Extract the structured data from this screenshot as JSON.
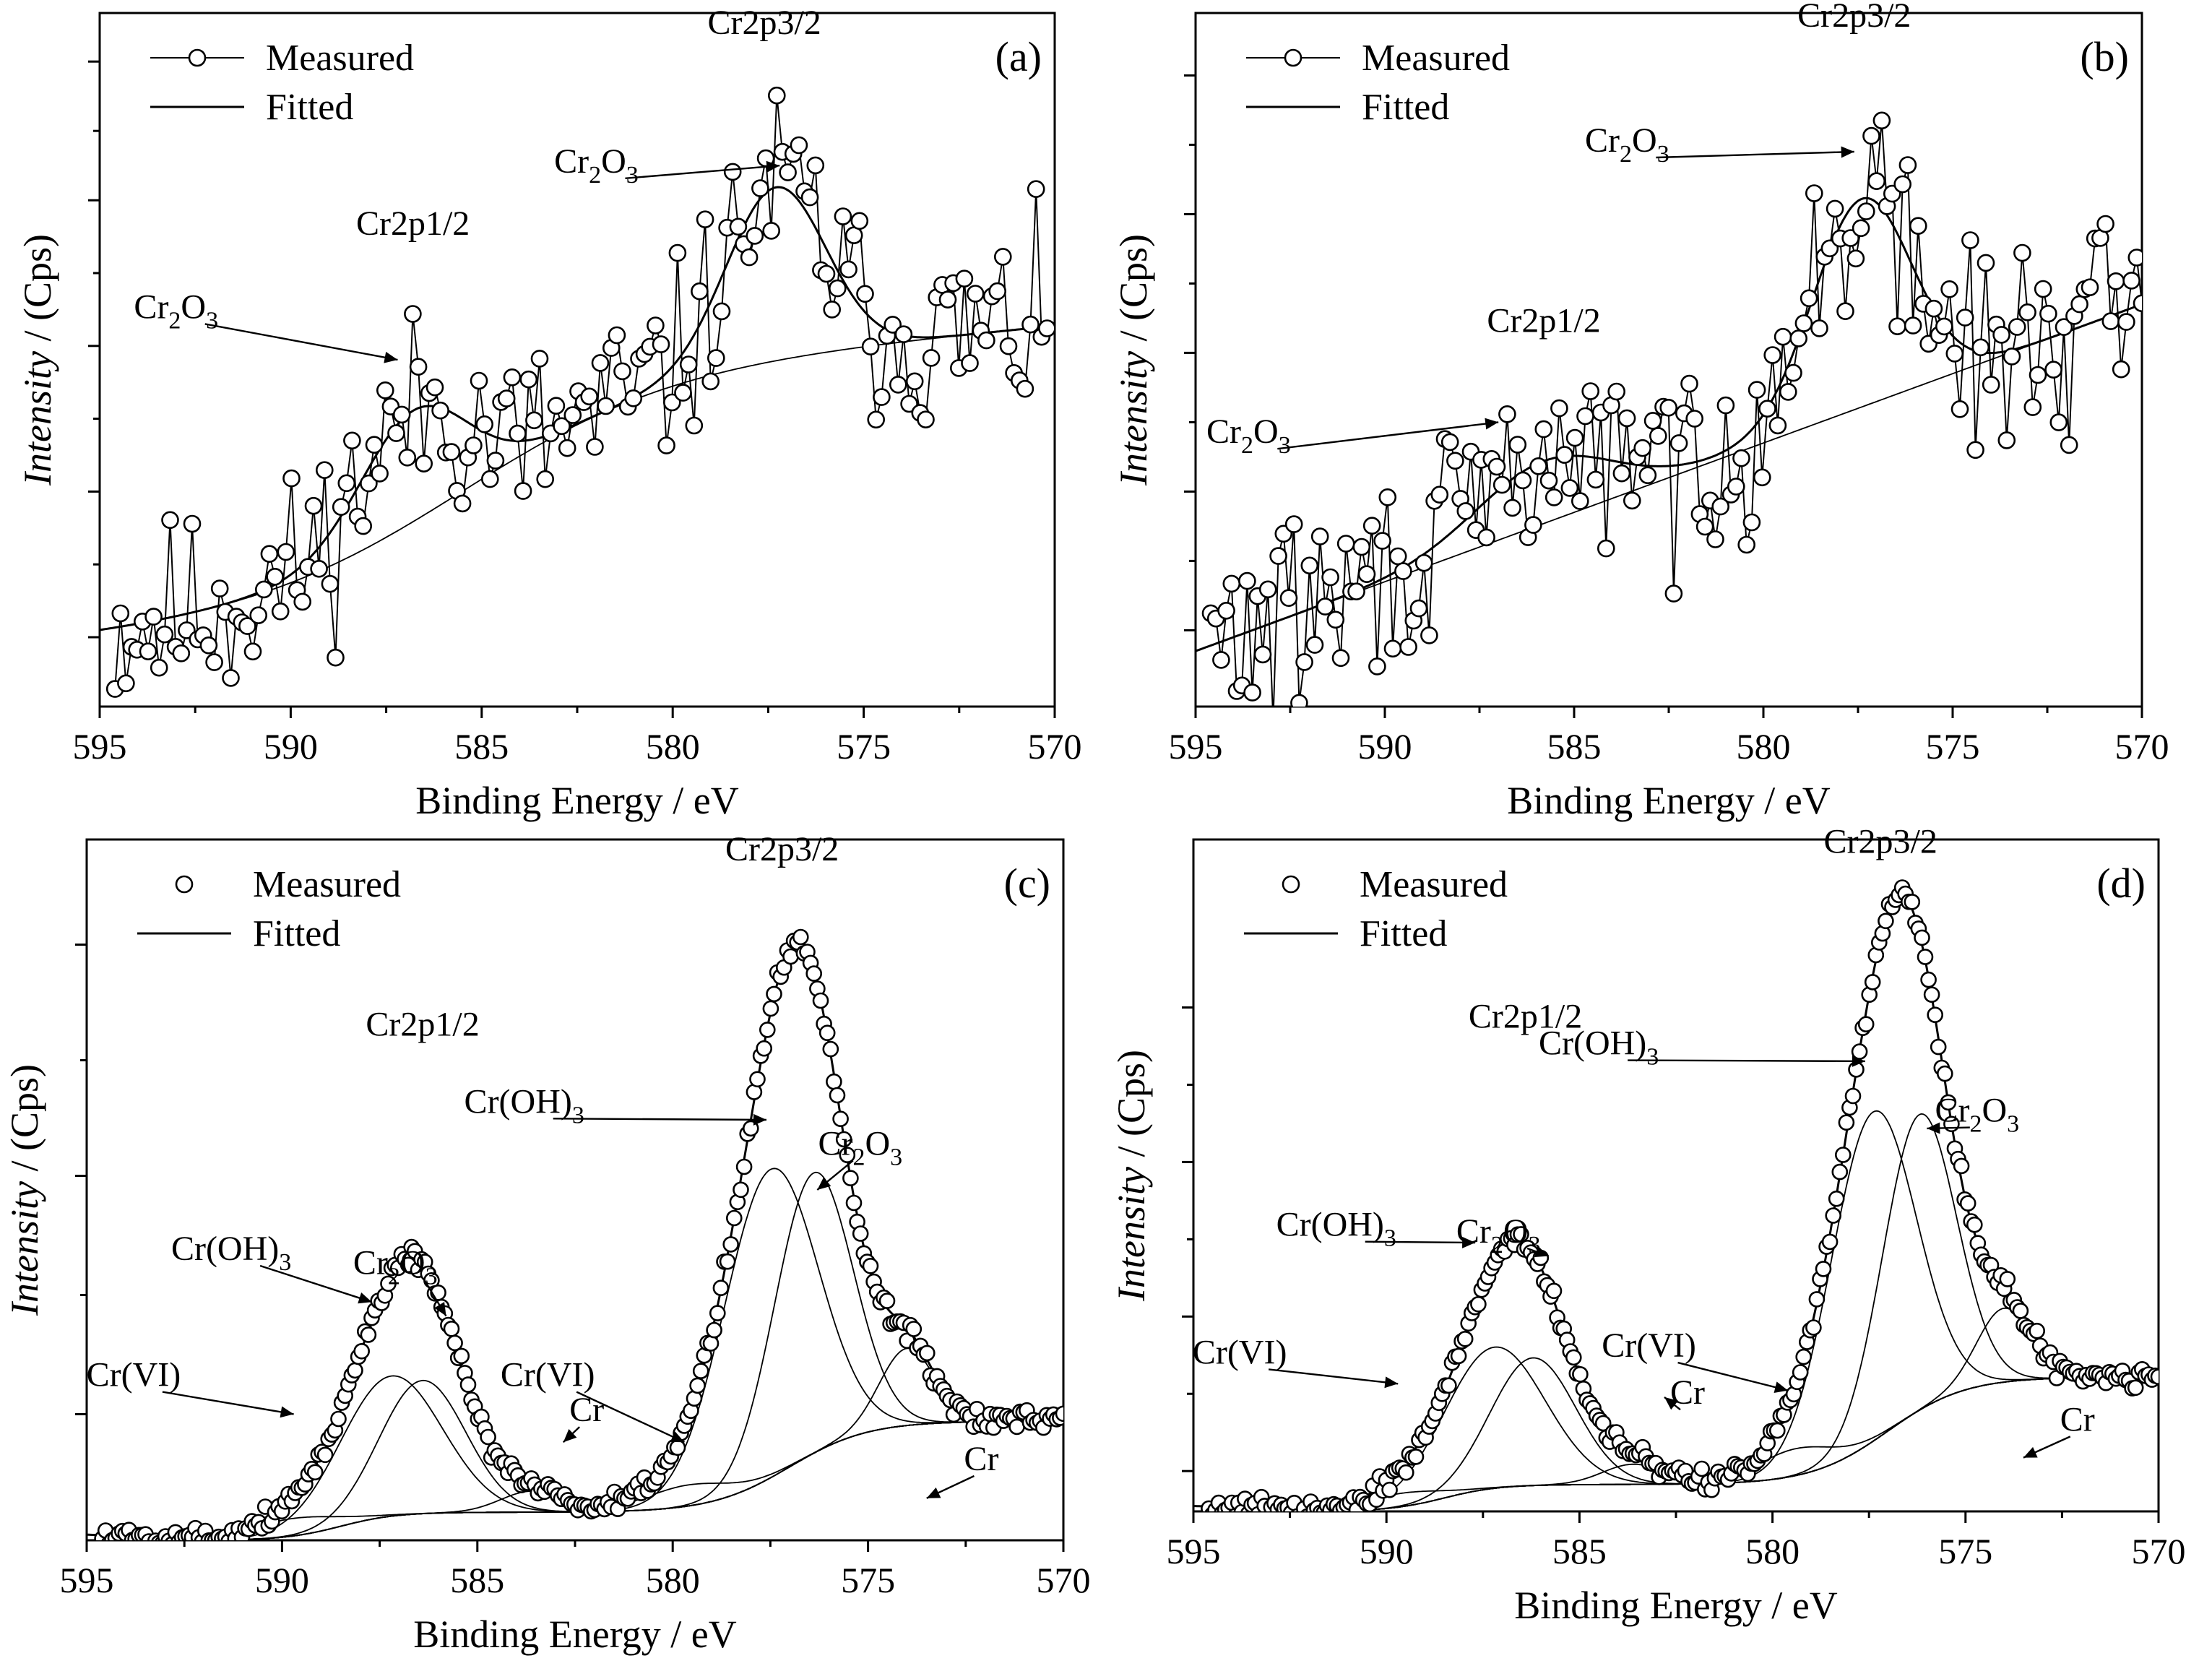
{
  "figure": {
    "description_labels": [
      "(a)",
      "(b)",
      "(c)",
      "(d)"
    ]
  },
  "chart_data": [
    {
      "panel": "(a)",
      "type": "scatter",
      "xlabel": "Binding Energy / eV",
      "ylabel_italic": "Intensity",
      "ylabel_rest": " / (Cps)",
      "xlim": [
        595,
        570
      ],
      "ylim": [
        0,
        100
      ],
      "xticks": [
        595,
        590,
        585,
        580,
        575,
        570
      ],
      "yticks_count": 5,
      "legend": {
        "measured": "Measured",
        "fitted": "Fitted",
        "measured_style": "line-with-markers"
      },
      "annotations": [
        {
          "text": "Cr2p3/2",
          "x": 577.5,
          "y": 95
        },
        {
          "text": "Cr2p1/2",
          "x": 586.5,
          "y": 67
        },
        {
          "text": "Cr",
          "sub": "2",
          "text2": "O",
          "sub2": "3",
          "x": 577.2,
          "y": 78,
          "arrow": true
        },
        {
          "text": "Cr",
          "sub": "2",
          "text2": "O",
          "sub2": "3",
          "x": 587.2,
          "y": 50,
          "arrow": true
        }
      ],
      "series": [
        {
          "name": "Fitted",
          "kind": "fit",
          "peaks": [
            [
              586.8,
              16,
              1.4
            ],
            [
              577.3,
              25,
              1.3
            ]
          ],
          "baseline": "a_bg"
        },
        {
          "name": "Background",
          "kind": "bg",
          "shape": "a_bg"
        },
        {
          "name": "Measured",
          "kind": "measured",
          "x_start": 594.6,
          "x_end": 570.2,
          "count": 170,
          "noise": 7,
          "seed": 11
        }
      ]
    },
    {
      "panel": "(b)",
      "type": "scatter",
      "xlabel": "Binding Energy / eV",
      "ylabel_italic": "Intensity",
      "ylabel_rest": " / (Cps)",
      "xlim": [
        595,
        570
      ],
      "ylim": [
        0,
        100
      ],
      "xticks": [
        595,
        590,
        585,
        580,
        575,
        570
      ],
      "yticks_count": 5,
      "legend": {
        "measured": "Measured",
        "fitted": "Fitted",
        "measured_style": "line-with-markers"
      },
      "annotations": [
        {
          "text": "Cr2p3/2",
          "x": 577.2,
          "y": 97
        },
        {
          "text": "Cr2p1/2",
          "x": 587.5,
          "y": 55
        },
        {
          "text": "Cr",
          "sub": "2",
          "text2": "O",
          "sub2": "3",
          "x": 577.6,
          "y": 80,
          "arrow": true
        },
        {
          "text": "Cr",
          "sub": "2",
          "text2": "O",
          "sub2": "3",
          "x": 587.0,
          "y": 41,
          "arrow": true
        }
      ],
      "series": [
        {
          "name": "Fitted",
          "kind": "fit",
          "peaks": [
            [
              585.8,
              9,
              1.8
            ],
            [
              577.4,
              30,
              1.3
            ]
          ],
          "baseline": "b_bg"
        },
        {
          "name": "Background",
          "kind": "bg",
          "shape": "b_bg"
        },
        {
          "name": "Measured",
          "kind": "measured",
          "x_start": 594.6,
          "x_end": 570.0,
          "count": 180,
          "noise": 7,
          "seed": 29
        }
      ]
    },
    {
      "panel": "(c)",
      "type": "scatter",
      "xlabel": "Binding Energy / eV",
      "ylabel_italic": "Intensity",
      "ylabel_rest": " / (Cps)",
      "xlim": [
        595,
        570
      ],
      "ylim": [
        0,
        100
      ],
      "xticks": [
        595,
        590,
        585,
        580,
        575,
        570
      ],
      "yticks_count": 4,
      "legend": {
        "measured": "Measured",
        "fitted": "Fitted",
        "measured_style": "markers-only"
      },
      "annotations": [
        {
          "text": "Cr2p3/2",
          "x": 576.8,
          "y": 97
        },
        {
          "text": "Cr2p1/2",
          "x": 586.8,
          "y": 69
        },
        {
          "text": "Cr(OH)",
          "sub": "3",
          "x": 577.6,
          "y": 60,
          "arrow": true
        },
        {
          "text": "Cr",
          "sub": "2",
          "text2": "O",
          "sub2": "3",
          "x": 576.3,
          "y": 50,
          "arrow": true
        },
        {
          "text": "Cr(OH)",
          "sub": "3",
          "x": 587.7,
          "y": 34,
          "arrow": true
        },
        {
          "text": "Cr",
          "sub": "2",
          "text2": "O",
          "sub2": "3",
          "x": 585.8,
          "y": 32,
          "arrow": true
        },
        {
          "text": "Cr(VI)",
          "x": 589.7,
          "y": 18,
          "arrow": true
        },
        {
          "text": "Cr(VI)",
          "x": 579.7,
          "y": 14,
          "arrow": true
        },
        {
          "text": "Cr",
          "x": 582.8,
          "y": 14,
          "arrow": true
        },
        {
          "text": "Cr",
          "x": 573.5,
          "y": 6,
          "arrow": true
        }
      ],
      "series": [
        {
          "name": "Background",
          "kind": "bg",
          "shape": "shirley",
          "left": 17,
          "mid": 13,
          "right": 0
        },
        {
          "name": "Cr(VI) 2p1/2",
          "kind": "comp",
          "center": 589.7,
          "height": 2.5,
          "width": 1.1
        },
        {
          "name": "Cr(OH)3 2p1/2",
          "kind": "comp",
          "center": 587.2,
          "height": 20,
          "width": 1.3
        },
        {
          "name": "Cr2O3 2p1/2",
          "kind": "comp",
          "center": 586.4,
          "height": 19,
          "width": 1.1
        },
        {
          "name": "Cr 2p1/2",
          "kind": "comp",
          "center": 583.6,
          "height": 3,
          "width": 0.8
        },
        {
          "name": "Cr(VI) 2p3/2",
          "kind": "comp",
          "center": 579.6,
          "height": 3,
          "width": 1.1
        },
        {
          "name": "Cr(OH)3 2p3/2",
          "kind": "comp",
          "center": 577.5,
          "height": 44,
          "width": 1.2
        },
        {
          "name": "Cr2O3 2p3/2",
          "kind": "comp",
          "center": 576.4,
          "height": 40,
          "width": 1.0
        },
        {
          "name": "Cr 2p3/2",
          "kind": "comp",
          "center": 574.0,
          "height": 11,
          "width": 0.7
        },
        {
          "name": "Measured",
          "kind": "measured-sum",
          "x_start": 594.6,
          "x_end": 570.0,
          "count": 290,
          "noise": 0.8,
          "seed": 5
        }
      ]
    },
    {
      "panel": "(d)",
      "type": "scatter",
      "xlabel": "Binding Energy / eV",
      "ylabel_italic": "Intensity",
      "ylabel_rest": " / (Cps)",
      "xlim": [
        595,
        570
      ],
      "ylim": [
        0,
        100
      ],
      "xticks": [
        595,
        590,
        585,
        580,
        575,
        570
      ],
      "yticks_count": 4,
      "legend": {
        "measured": "Measured",
        "fitted": "Fitted",
        "measured_style": "markers-only"
      },
      "annotations": [
        {
          "text": "Cr2p3/2",
          "x": 576.8,
          "y": 97
        },
        {
          "text": "Cr2p1/2",
          "x": 586.8,
          "y": 69
        },
        {
          "text": "Cr(OH)",
          "sub": "3",
          "x": 577.6,
          "y": 67,
          "arrow": true
        },
        {
          "text": "Cr",
          "sub": "2",
          "text2": "O",
          "sub2": "3",
          "x": 576.0,
          "y": 57,
          "arrow": true
        },
        {
          "text": "Cr(OH)",
          "sub": "3",
          "x": 587.7,
          "y": 40,
          "arrow": true
        },
        {
          "text": "Cr",
          "sub": "2",
          "text2": "O",
          "sub2": "3",
          "x": 585.8,
          "y": 38,
          "arrow": true
        },
        {
          "text": "Cr(VI)",
          "x": 589.7,
          "y": 19,
          "arrow": true
        },
        {
          "text": "Cr(VI)",
          "x": 579.6,
          "y": 18,
          "arrow": true
        },
        {
          "text": "Cr",
          "x": 582.8,
          "y": 17,
          "arrow": true
        },
        {
          "text": "Cr",
          "x": 573.5,
          "y": 8,
          "arrow": true
        }
      ],
      "series": [
        {
          "name": "Background",
          "kind": "bg",
          "shape": "shirley",
          "left": 20,
          "mid": 16,
          "right": 0
        },
        {
          "name": "Cr(VI) 2p1/2",
          "kind": "comp",
          "center": 589.6,
          "height": 2,
          "width": 1.0
        },
        {
          "name": "Cr(OH)3 2p1/2",
          "kind": "comp",
          "center": 587.2,
          "height": 21,
          "width": 1.3
        },
        {
          "name": "Cr2O3 2p1/2",
          "kind": "comp",
          "center": 586.2,
          "height": 19,
          "width": 1.1
        },
        {
          "name": "Cr 2p1/2",
          "kind": "comp",
          "center": 583.6,
          "height": 3,
          "width": 0.8
        },
        {
          "name": "Cr(VI) 2p3/2",
          "kind": "comp",
          "center": 579.4,
          "height": 4,
          "width": 1.0
        },
        {
          "name": "Cr(OH)3 2p3/2",
          "kind": "comp",
          "center": 577.4,
          "height": 49,
          "width": 1.1
        },
        {
          "name": "Cr2O3 2p3/2",
          "kind": "comp",
          "center": 576.2,
          "height": 44,
          "width": 0.95
        },
        {
          "name": "Cr 2p3/2",
          "kind": "comp",
          "center": 574.0,
          "height": 11,
          "width": 0.7
        },
        {
          "name": "Measured",
          "kind": "measured-sum",
          "x_start": 594.6,
          "x_end": 570.0,
          "count": 290,
          "noise": 0.8,
          "seed": 9
        }
      ]
    }
  ]
}
